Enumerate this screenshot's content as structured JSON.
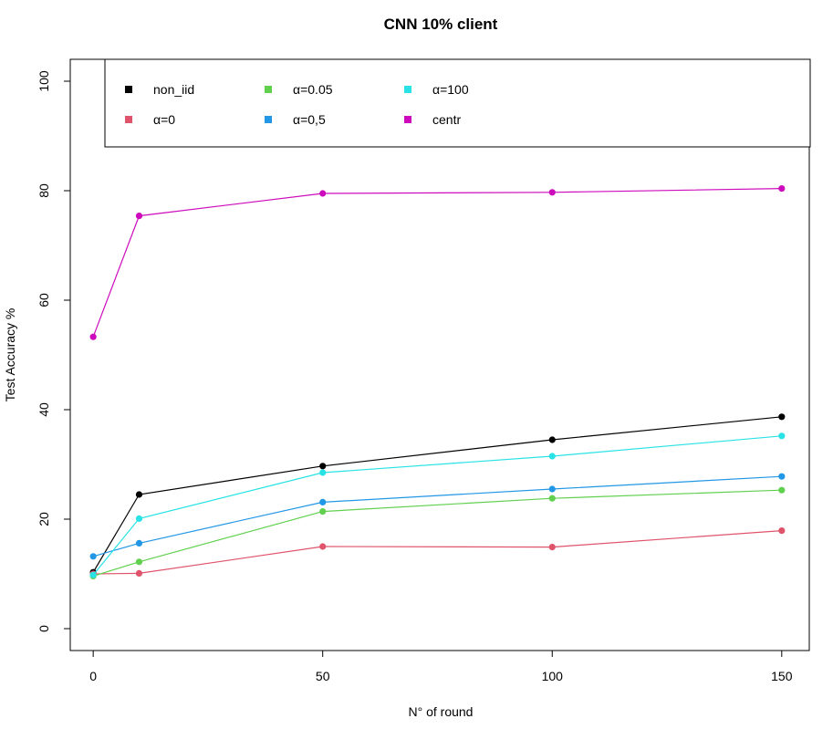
{
  "chart_data": {
    "type": "line",
    "title": "CNN 10% client",
    "xlabel": "N° of round",
    "ylabel": "Test Accuracy %",
    "x": [
      0,
      10,
      50,
      100,
      150
    ],
    "xticks": [
      0,
      50,
      100,
      150
    ],
    "yticks": [
      0,
      20,
      40,
      60,
      80,
      100
    ],
    "xlim": [
      -5,
      156
    ],
    "ylim": [
      -4,
      104
    ],
    "grid": false,
    "legend_position": "top",
    "series": [
      {
        "name": "non_iid",
        "color": "#000000",
        "values": [
          10.3,
          24.5,
          29.7,
          34.5,
          38.7
        ]
      },
      {
        "name": "α=0",
        "color": "#DF536B",
        "values": [
          10.0,
          10.1,
          15.0,
          14.9,
          17.9
        ]
      },
      {
        "name": "α=0.05",
        "color": "#61D04F",
        "values": [
          9.6,
          12.2,
          21.4,
          23.8,
          25.3
        ]
      },
      {
        "name": "α=0,5",
        "color": "#2297E6",
        "values": [
          13.2,
          15.6,
          23.1,
          25.5,
          27.8
        ]
      },
      {
        "name": "α=100",
        "color": "#28E2E5",
        "values": [
          9.8,
          20.1,
          28.5,
          31.5,
          35.2
        ]
      },
      {
        "name": "centr",
        "color": "#CD0BBC",
        "values": [
          53.3,
          75.4,
          79.5,
          79.7,
          80.4
        ]
      }
    ]
  }
}
